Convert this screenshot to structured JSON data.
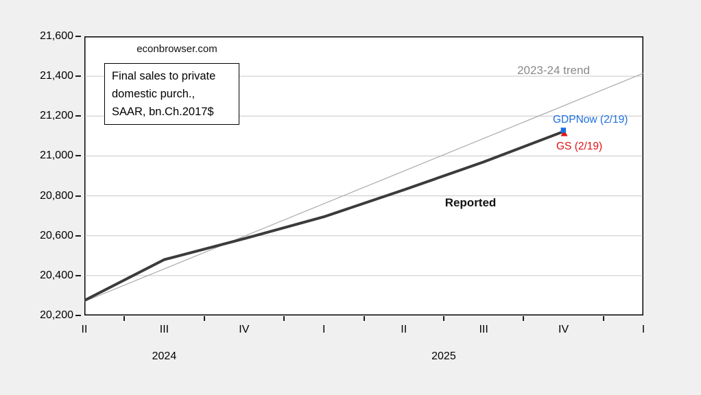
{
  "page": {
    "background_color": "#f0f0f0",
    "plot_background_color": "#ffffff"
  },
  "watermark": "econbrowser.com",
  "annotation_box": {
    "lines": [
      "Final sales to private",
      "domestic purch.,",
      "SAAR, bn.Ch.2017$"
    ]
  },
  "labels": {
    "trend": "2023-24 trend",
    "reported": "Reported",
    "gdpnow": "GDPNow (2/19)",
    "gs": "GS (2/19)"
  },
  "colors": {
    "reported_line": "#3b3b3b",
    "trend_line": "#a8a8a8",
    "trend_text": "#8a8a8a",
    "gdpnow": "#1c6fe0",
    "gs": "#e01212",
    "gridline": "#c6c6c6",
    "axis": "#000000"
  },
  "chart_data": {
    "type": "line",
    "title": "",
    "xlabel": "",
    "ylabel": "",
    "x_labels": [
      "II",
      "III",
      "IV",
      "I",
      "II",
      "III",
      "IV",
      "I"
    ],
    "x_periods": [
      "2024Q2",
      "2024Q3",
      "2024Q4",
      "2025Q1",
      "2025Q2",
      "2025Q3",
      "2025Q4",
      "2026Q1"
    ],
    "year_labels": [
      {
        "text": "2024",
        "index": 1
      },
      {
        "text": "2025",
        "index": 4.5
      }
    ],
    "ylim": [
      20200,
      21600
    ],
    "y_ticks": [
      20200,
      20400,
      20600,
      20800,
      21000,
      21200,
      21400,
      21600
    ],
    "grid": "horizontal",
    "legend_position": "none",
    "series": [
      {
        "name": "Reported",
        "color": "#3b3b3b",
        "width": 4,
        "x_indices": [
          0,
          1,
          2,
          3,
          4,
          5
        ],
        "values": [
          20275,
          20480,
          20585,
          20695,
          20830,
          20970
        ]
      },
      {
        "name": "2023-24 trend",
        "color": "#a8a8a8",
        "width": 1.2,
        "x_indices": [
          0,
          7
        ],
        "values": [
          20270,
          21415
        ]
      }
    ],
    "forecasts": [
      {
        "name": "GDPNow (2/19)",
        "x_index": 6,
        "value": 21130,
        "marker": "square",
        "color": "#1c6fe0"
      },
      {
        "name": "GS (2/19)",
        "x_index": 6,
        "value": 21115,
        "marker": "triangle-up",
        "color": "#e01212"
      }
    ]
  }
}
